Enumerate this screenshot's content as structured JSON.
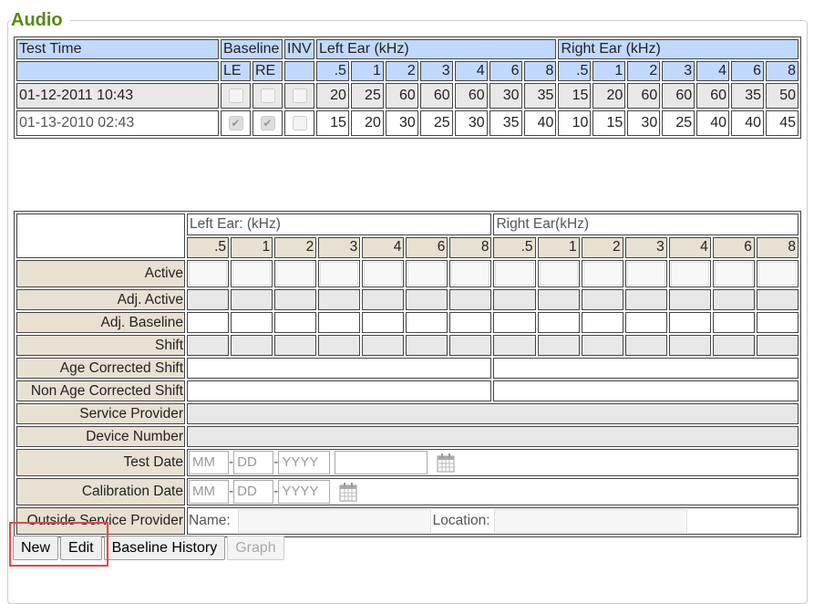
{
  "section_title": "Audio",
  "history": {
    "headers": {
      "test_time": "Test Time",
      "baseline": "Baseline",
      "inv": "INV",
      "left_ear": "Left Ear (kHz)",
      "right_ear": "Right Ear (kHz)",
      "le": "LE",
      "re": "RE"
    },
    "freqs": [
      ".5",
      "1",
      "2",
      "3",
      "4",
      "6",
      "8"
    ],
    "rows": [
      {
        "time": "01-12-2011 10:43",
        "le": false,
        "re": false,
        "inv": false,
        "left": [
          "20",
          "25",
          "60",
          "60",
          "60",
          "30",
          "35"
        ],
        "right": [
          "15",
          "20",
          "60",
          "60",
          "60",
          "35",
          "50"
        ]
      },
      {
        "time": "01-13-2010 02:43",
        "le": true,
        "re": true,
        "inv": false,
        "left": [
          "15",
          "20",
          "30",
          "25",
          "30",
          "35",
          "40"
        ],
        "right": [
          "10",
          "15",
          "30",
          "25",
          "40",
          "40",
          "45"
        ]
      }
    ]
  },
  "entry": {
    "left_ear": "Left Ear: (kHz)",
    "right_ear": "Right Ear(kHz)",
    "freqs": [
      ".5",
      "1",
      "2",
      "3",
      "4",
      "6",
      "8"
    ],
    "labels": {
      "active": "Active",
      "adj_active": "Adj. Active",
      "adj_baseline": "Adj. Baseline",
      "shift": "Shift",
      "age_corrected": "Age Corrected Shift",
      "non_age_corrected": "Non Age Corrected Shift",
      "service_provider": "Service Provider",
      "device_number": "Device Number",
      "test_date": "Test Date",
      "calibration_date": "Calibration Date",
      "outside_provider": "Outside Service Provider"
    },
    "date_placeholders": {
      "mm": "MM",
      "dd": "DD",
      "yyyy": "YYYY",
      "sep": "-"
    },
    "name_label": "Name:",
    "location_label": "Location:"
  },
  "buttons": {
    "new": "New",
    "edit": "Edit",
    "baseline_history": "Baseline History",
    "graph": "Graph"
  },
  "colors": {
    "header_blue": "#c2d9ff",
    "label_tan": "#e8e1d2",
    "title_green": "#5a8a12",
    "highlight_red": "#e84545"
  }
}
